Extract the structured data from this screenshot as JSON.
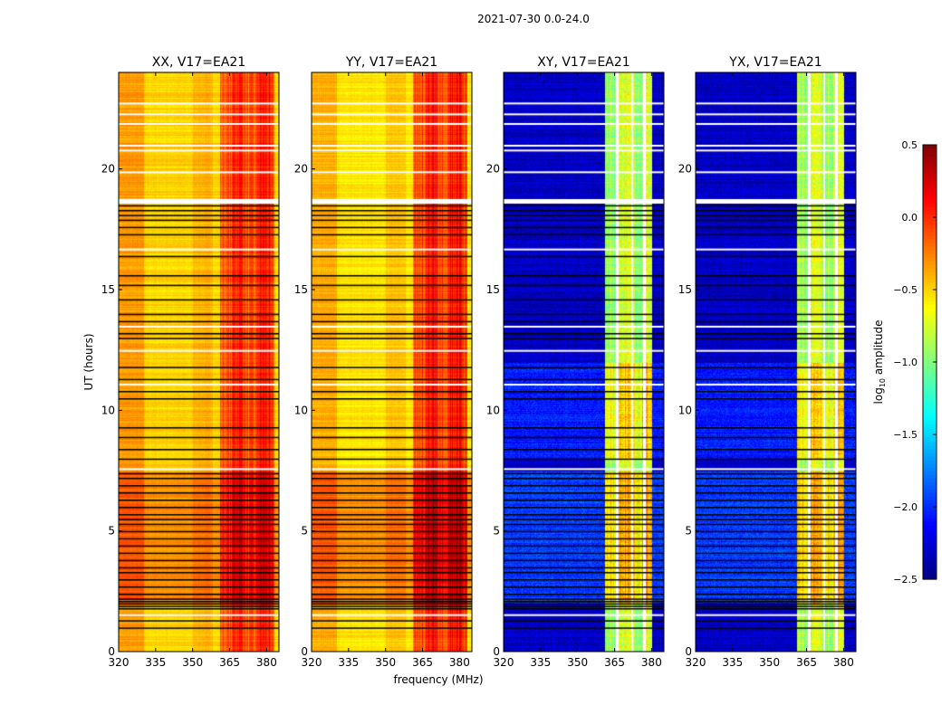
{
  "chart_data": {
    "type": "heatmap",
    "title": "2021-07-30 0.0-24.0",
    "xlabel": "frequency (MHz)",
    "ylabel": "UT (hours)",
    "xlim": [
      320,
      385
    ],
    "ylim": [
      0,
      24
    ],
    "xticks": [
      "320",
      "335",
      "350",
      "365",
      "380"
    ],
    "yticks": [
      "0",
      "5",
      "10",
      "15",
      "20"
    ],
    "colorbar": {
      "label": "log10 amplitude",
      "label_main": "log",
      "label_sub": "10",
      "label_rest": " amplitude",
      "colormap": "jet",
      "range": [
        -2.5,
        0.5
      ],
      "ticks": [
        "0.5",
        "0.0",
        "−0.5",
        "−1.0",
        "−1.5",
        "−2.0",
        "−2.5"
      ]
    },
    "panels": [
      {
        "title": "XX, V17=EA21",
        "base": -0.45,
        "band": -0.05,
        "night_offset": 0.2,
        "band_range": [
          361,
          383
        ]
      },
      {
        "title": "YY, V17=EA21",
        "base": -0.5,
        "band": 0.0,
        "night_offset": 0.25,
        "band_range": [
          361,
          383
        ]
      },
      {
        "title": "XY, V17=EA21",
        "base": -2.3,
        "band": -0.8,
        "night_offset": 0.35,
        "band_range": [
          361,
          380
        ]
      },
      {
        "title": "YX, V17=EA21",
        "base": -2.3,
        "band": -0.8,
        "night_offset": 0.35,
        "band_range": [
          361,
          380
        ]
      }
    ],
    "flagged_white_hours": [
      22.75,
      22.3,
      21.9,
      21.0,
      20.8,
      19.9,
      18.75,
      16.7,
      13.5,
      12.5,
      11.1,
      7.6,
      1.55
    ],
    "flagged_black_hours": [
      18.5,
      18.3,
      18.1,
      17.9,
      17.6,
      17.3,
      16.4,
      15.6,
      15.2,
      14.6,
      14.0,
      13.7,
      13.2,
      13.0,
      11.8,
      11.3,
      10.8,
      10.5,
      9.3,
      8.9,
      8.4,
      8.0,
      7.4,
      7.2,
      6.9,
      6.6,
      6.3,
      6.0,
      5.7,
      5.5,
      5.3,
      5.0,
      4.7,
      4.4,
      4.1,
      3.8,
      3.5,
      3.3,
      3.0,
      2.7,
      2.4,
      2.2,
      2.1,
      2.0,
      1.9,
      1.8,
      1.3,
      1.0
    ]
  }
}
